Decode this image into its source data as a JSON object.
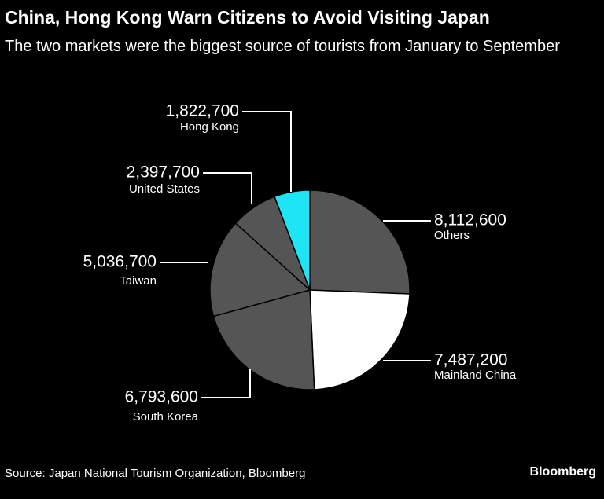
{
  "header": {
    "title": "China, Hong Kong Warn Citizens to Avoid Visiting Japan",
    "subtitle": "The two markets were the biggest source of tourists from January to September"
  },
  "footer": {
    "source": "Source: Japan National Tourism Organization, Bloomberg",
    "brand": "Bloomberg"
  },
  "chart_data": {
    "type": "pie",
    "start": "12 o'clock",
    "direction": "clockwise",
    "slices": [
      {
        "label": "Others",
        "value": 8112600,
        "value_label": "8,112,600",
        "color": "#555555"
      },
      {
        "label": "Mainland China",
        "value": 7487200,
        "value_label": "7,487,200",
        "color": "#ffffff"
      },
      {
        "label": "South Korea",
        "value": 6793600,
        "value_label": "6,793,600",
        "color": "#555555"
      },
      {
        "label": "Taiwan",
        "value": 5036700,
        "value_label": "5,036,700",
        "color": "#555555"
      },
      {
        "label": "United States",
        "value": 2397700,
        "value_label": "2,397,700",
        "color": "#555555"
      },
      {
        "label": "Hong Kong",
        "value": 1822700,
        "value_label": "1,822,700",
        "color": "#1ee4f5"
      }
    ],
    "stroke_color": "#000000"
  }
}
